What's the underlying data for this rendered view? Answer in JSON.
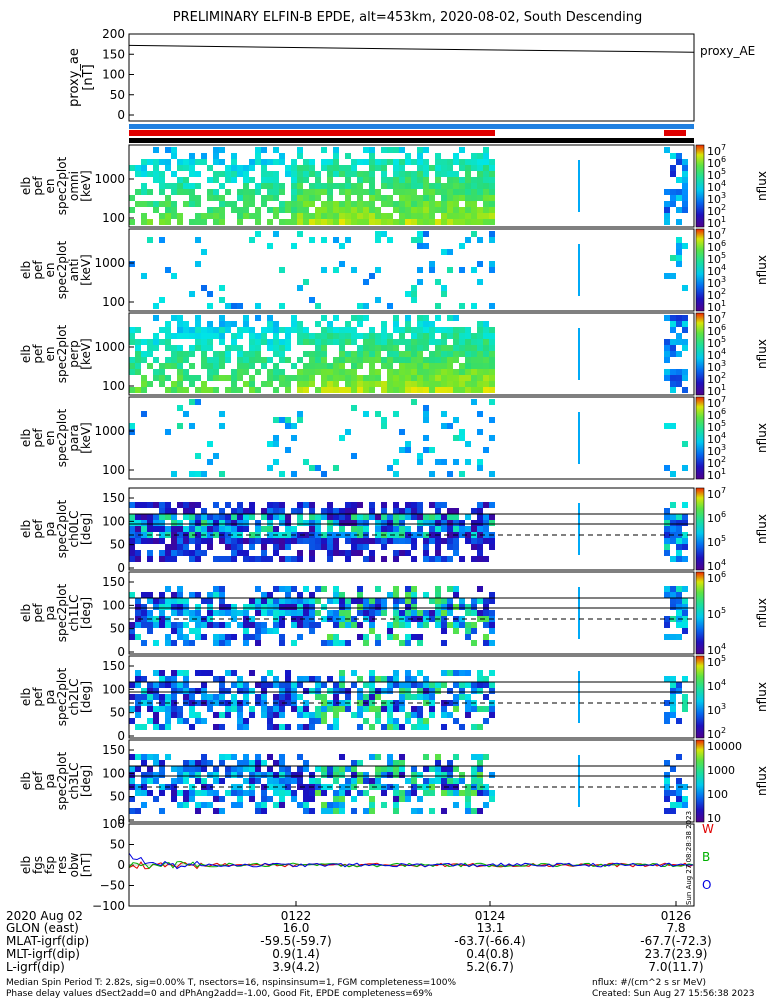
{
  "title": "PRELIMINARY ELFIN-B EPDE, alt=453km, 2020-08-02, South Descending",
  "proxy_ae": {
    "ylabel": [
      "proxy_ae",
      "[nT]"
    ],
    "yticks": [
      "200",
      "150",
      "100",
      "50",
      "0"
    ],
    "legend": "proxy_AE",
    "series": [
      [
        0,
        172
      ],
      [
        0.5,
        163
      ],
      [
        1,
        155
      ]
    ]
  },
  "panels": [
    {
      "ylabel": [
        "elb",
        "pef",
        "en",
        "spec2plot",
        "omni",
        "[keV]"
      ],
      "yticks": [
        "1000",
        "100"
      ],
      "kind": "energy",
      "density": 0.85,
      "cbar": {
        "ticks": [
          "10",
          "10",
          "10",
          "10",
          "10",
          "10",
          "10"
        ],
        "exps": [
          "7",
          "6",
          "5",
          "4",
          "3",
          "2",
          "1"
        ],
        "label": "nflux"
      }
    },
    {
      "ylabel": [
        "elb",
        "pef",
        "en",
        "spec2plot",
        "anti",
        "[keV]"
      ],
      "yticks": [
        "1000",
        "100"
      ],
      "kind": "energy",
      "density": 0.12,
      "cbar": {
        "ticks": [
          "10",
          "10",
          "10",
          "10",
          "10",
          "10",
          "10"
        ],
        "exps": [
          "7",
          "6",
          "5",
          "4",
          "3",
          "2",
          "1"
        ],
        "label": "nflux"
      }
    },
    {
      "ylabel": [
        "elb",
        "pef",
        "en",
        "spec2plot",
        "perp",
        "[keV]"
      ],
      "yticks": [
        "1000",
        "100"
      ],
      "kind": "energy",
      "density": 0.85,
      "cbar": {
        "ticks": [
          "10",
          "10",
          "10",
          "10",
          "10",
          "10",
          "10"
        ],
        "exps": [
          "7",
          "6",
          "5",
          "4",
          "3",
          "2",
          "1"
        ],
        "label": "nflux"
      }
    },
    {
      "ylabel": [
        "elb",
        "pef",
        "en",
        "spec2plot",
        "para",
        "[keV]"
      ],
      "yticks": [
        "1000",
        "100"
      ],
      "kind": "energy",
      "density": 0.12,
      "cbar": {
        "ticks": [
          "10",
          "10",
          "10",
          "10",
          "10",
          "10",
          "10"
        ],
        "exps": [
          "7",
          "6",
          "5",
          "4",
          "3",
          "2",
          "1"
        ],
        "label": "nflux"
      }
    },
    {
      "ylabel": [
        "elb",
        "pef",
        "pa",
        "spec2plot",
        "ch0LC",
        "[deg]"
      ],
      "yticks": [
        "150",
        "100",
        "50",
        "0"
      ],
      "kind": "pitch",
      "density": 0.9,
      "cbar": {
        "ticks": [
          "10",
          "10",
          "10",
          "10"
        ],
        "exps": [
          "7",
          "6",
          "5",
          "4"
        ],
        "label": "nflux"
      }
    },
    {
      "ylabel": [
        "elb",
        "pef",
        "pa",
        "spec2plot",
        "ch1LC",
        "[deg]"
      ],
      "yticks": [
        "150",
        "100",
        "50",
        "0"
      ],
      "kind": "pitch",
      "density": 0.7,
      "cbar": {
        "ticks": [
          "10",
          "10",
          "10"
        ],
        "exps": [
          "6",
          "5",
          "4"
        ],
        "label": "nflux"
      }
    },
    {
      "ylabel": [
        "elb",
        "pef",
        "pa",
        "spec2plot",
        "ch2LC",
        "[deg]"
      ],
      "yticks": [
        "150",
        "100",
        "50",
        "0"
      ],
      "kind": "pitch",
      "density": 0.75,
      "cbar": {
        "ticks": [
          "10",
          "10",
          "10",
          "10"
        ],
        "exps": [
          "5",
          "4",
          "3",
          "2"
        ],
        "label": "nflux"
      }
    },
    {
      "ylabel": [
        "elb",
        "pef",
        "pa",
        "spec2plot",
        "ch3LC",
        "[deg]"
      ],
      "yticks": [
        "150",
        "100",
        "50",
        "0"
      ],
      "kind": "pitch",
      "density": 0.7,
      "cbar": {
        "ticks": [
          "10000",
          "1000",
          "100",
          "10"
        ],
        "exps": [
          "",
          "",
          "",
          ""
        ],
        "label": "nflux"
      }
    }
  ],
  "fgm": {
    "ylabel": [
      "elb",
      "fgs",
      "fsp",
      "res",
      "obw",
      "[nT]"
    ],
    "yticks": [
      "100",
      "50",
      "0",
      "−50",
      "−100"
    ],
    "components": [
      {
        "label": "W",
        "color": "#e00000"
      },
      {
        "label": "B",
        "color": "#00b000"
      },
      {
        "label": "O",
        "color": "#0000e0"
      }
    ],
    "vertical_note": "Sun Aug 27 08:28:38 2023"
  },
  "xaxis": {
    "ticks": [
      "0122",
      "0124",
      "0126"
    ],
    "rows": [
      {
        "label": "2020 Aug 02",
        "values": [
          "0122",
          "0124",
          "0126"
        ]
      },
      {
        "label": "GLON (east)",
        "values": [
          "16.0",
          "13.1",
          "7.8"
        ]
      },
      {
        "label": "MLAT-igrf(dip)",
        "values": [
          "-59.5(-59.7)",
          "-63.7(-66.4)",
          "-67.7(-72.3)"
        ]
      },
      {
        "label": "MLT-igrf(dip)",
        "values": [
          "0.9(1.4)",
          "0.4(0.8)",
          "23.7(23.9)"
        ]
      },
      {
        "label": "L-igrf(dip)",
        "values": [
          "3.9(4.2)",
          "5.2(6.7)",
          "7.0(11.7)"
        ]
      }
    ]
  },
  "footer": {
    "line1_left": "Median Spin Period T: 2.82s, sig=0.00% T, nsectors=16, nspinsinsum=1, FGM completeness=100%",
    "line2_left": "Phase delay values dSect2add=0 and dPhAng2add=-1.00, Good Fit, EPDE completeness=69%",
    "line1_right": "nflux: #/(cm^2 s sr MeV)",
    "line2_right": "Created: Sun Aug 27 15:56:38 2023"
  },
  "colors": {
    "red_bar": "#e00000",
    "blue_bar": "#1e7fe0",
    "black_bar": "#000000"
  }
}
